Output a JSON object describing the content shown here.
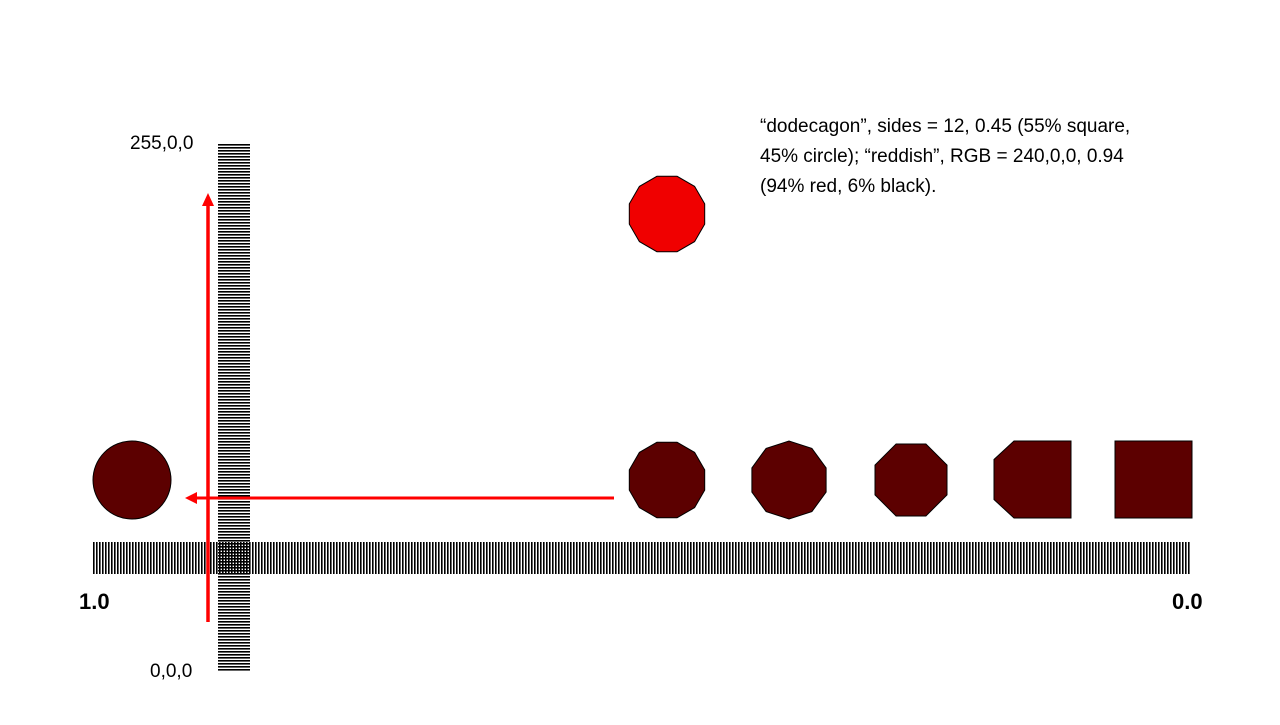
{
  "description": {
    "line1": "“dodecagon”, sides = 12, 0.45 (55% square,",
    "line2": "45% circle); “reddish”, RGB = 240,0,0, 0.94",
    "line3": "(94% red, 6% black)."
  },
  "vertical_axis": {
    "top_label": "255,0,0",
    "bottom_label": "0,0,0"
  },
  "horizontal_axis": {
    "left_label": "1.0",
    "right_label": "0.0"
  },
  "colors": {
    "highlight_fill": "#F00000",
    "shape_fill": "#5C0000",
    "arrow": "#FF0000",
    "stroke": "#000000"
  },
  "shapes": {
    "highlighted": {
      "name": "dodecagon",
      "sides": 12,
      "color_value": 0.94
    },
    "sequence": [
      {
        "name": "circle",
        "value": 1.0
      },
      {
        "name": "dodecagon",
        "sides": 12
      },
      {
        "name": "decagon",
        "sides": 10
      },
      {
        "name": "octagon",
        "sides": 8
      },
      {
        "name": "rounded-square"
      },
      {
        "name": "square",
        "value": 0.0
      }
    ]
  }
}
